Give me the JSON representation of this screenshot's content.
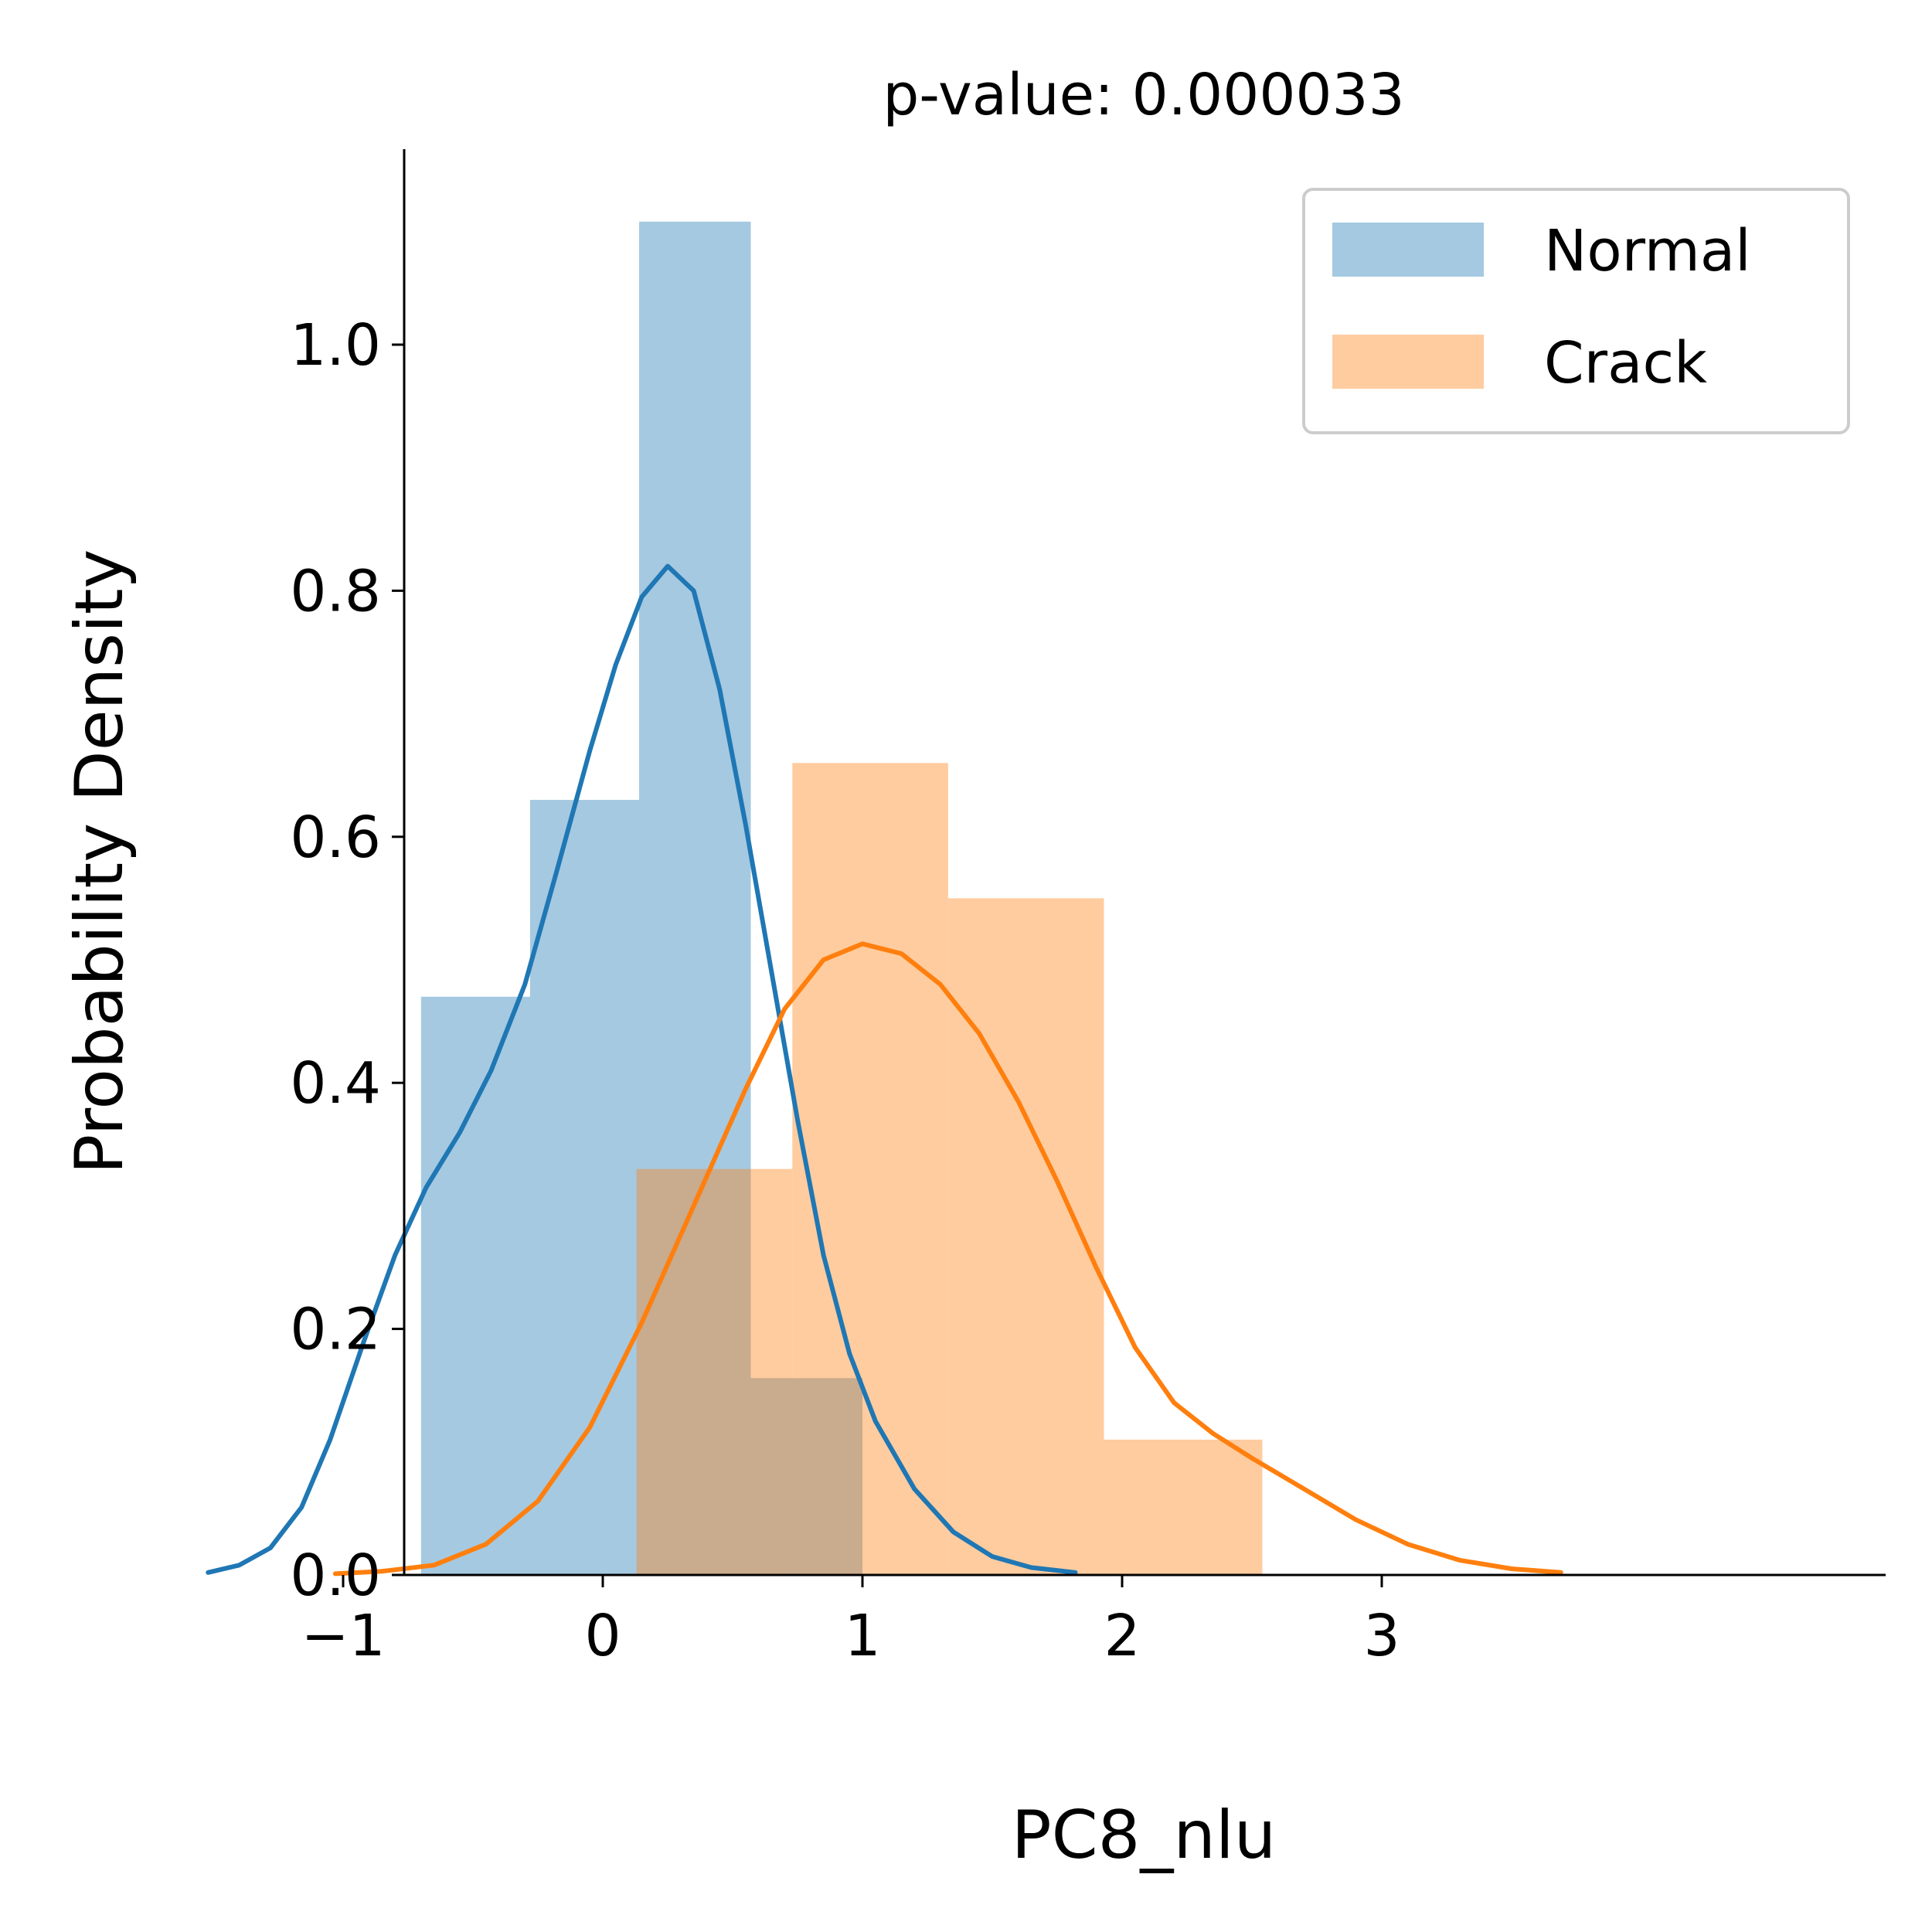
{
  "chart_data": {
    "type": "bar",
    "title": "p-value: 0.000033",
    "xlabel": "PC8_nlu",
    "ylabel": "Probability Density",
    "xlim": [
      -1.76,
      3.95
    ],
    "ylim": [
      0.0,
      1.16
    ],
    "xticks": [
      -1,
      0,
      1,
      2,
      3
    ],
    "xtick_labels": [
      "−1",
      "0",
      "1",
      "2",
      "3"
    ],
    "yticks": [
      0.0,
      0.2,
      0.4,
      0.6,
      0.8,
      1.0
    ],
    "ytick_labels": [
      "0.0",
      "0.2",
      "0.4",
      "0.6",
      "0.8",
      "1.0"
    ],
    "grid": false,
    "legend_position": "top-right",
    "series": [
      {
        "name": "Normal",
        "color": "#1f77b4",
        "hist_color": "#a6c8e0",
        "bins": [
          {
            "x0": -0.7,
            "x1": -0.28,
            "density": 0.47
          },
          {
            "x0": -0.28,
            "x1": 0.14,
            "density": 0.63
          },
          {
            "x0": 0.14,
            "x1": 0.57,
            "density": 1.1
          },
          {
            "x0": 0.57,
            "x1": 1.0,
            "density": 0.16
          }
        ],
        "kde": [
          [
            -1.52,
            0.002
          ],
          [
            -1.4,
            0.008
          ],
          [
            -1.28,
            0.022
          ],
          [
            -1.16,
            0.055
          ],
          [
            -1.05,
            0.11
          ],
          [
            -0.92,
            0.19
          ],
          [
            -0.8,
            0.26
          ],
          [
            -0.68,
            0.315
          ],
          [
            -0.55,
            0.36
          ],
          [
            -0.43,
            0.41
          ],
          [
            -0.3,
            0.48
          ],
          [
            -0.18,
            0.57
          ],
          [
            -0.05,
            0.67
          ],
          [
            0.05,
            0.74
          ],
          [
            0.15,
            0.795
          ],
          [
            0.25,
            0.82
          ],
          [
            0.35,
            0.8
          ],
          [
            0.45,
            0.72
          ],
          [
            0.55,
            0.61
          ],
          [
            0.65,
            0.49
          ],
          [
            0.75,
            0.37
          ],
          [
            0.85,
            0.26
          ],
          [
            0.95,
            0.18
          ],
          [
            1.05,
            0.125
          ],
          [
            1.2,
            0.07
          ],
          [
            1.35,
            0.035
          ],
          [
            1.5,
            0.015
          ],
          [
            1.65,
            0.006
          ],
          [
            1.82,
            0.002
          ]
        ]
      },
      {
        "name": "Crack",
        "color": "#ff7f0e",
        "hist_color": "#fdc999",
        "bins": [
          {
            "x0": 0.13,
            "x1": 0.73,
            "density": 0.33
          },
          {
            "x0": 0.73,
            "x1": 1.33,
            "density": 0.66
          },
          {
            "x0": 1.33,
            "x1": 1.93,
            "density": 0.55
          },
          {
            "x0": 1.93,
            "x1": 2.54,
            "density": 0.11
          }
        ],
        "kde": [
          [
            -1.03,
            0.001
          ],
          [
            -0.85,
            0.003
          ],
          [
            -0.65,
            0.008
          ],
          [
            -0.45,
            0.025
          ],
          [
            -0.25,
            0.06
          ],
          [
            -0.05,
            0.12
          ],
          [
            0.15,
            0.205
          ],
          [
            0.35,
            0.3
          ],
          [
            0.55,
            0.395
          ],
          [
            0.7,
            0.46
          ],
          [
            0.85,
            0.5
          ],
          [
            1.0,
            0.513
          ],
          [
            1.15,
            0.505
          ],
          [
            1.3,
            0.48
          ],
          [
            1.45,
            0.44
          ],
          [
            1.6,
            0.385
          ],
          [
            1.75,
            0.32
          ],
          [
            1.9,
            0.25
          ],
          [
            2.05,
            0.185
          ],
          [
            2.2,
            0.14
          ],
          [
            2.35,
            0.115
          ],
          [
            2.5,
            0.095
          ],
          [
            2.7,
            0.07
          ],
          [
            2.9,
            0.045
          ],
          [
            3.1,
            0.025
          ],
          [
            3.3,
            0.012
          ],
          [
            3.5,
            0.005
          ],
          [
            3.69,
            0.002
          ]
        ]
      }
    ]
  }
}
